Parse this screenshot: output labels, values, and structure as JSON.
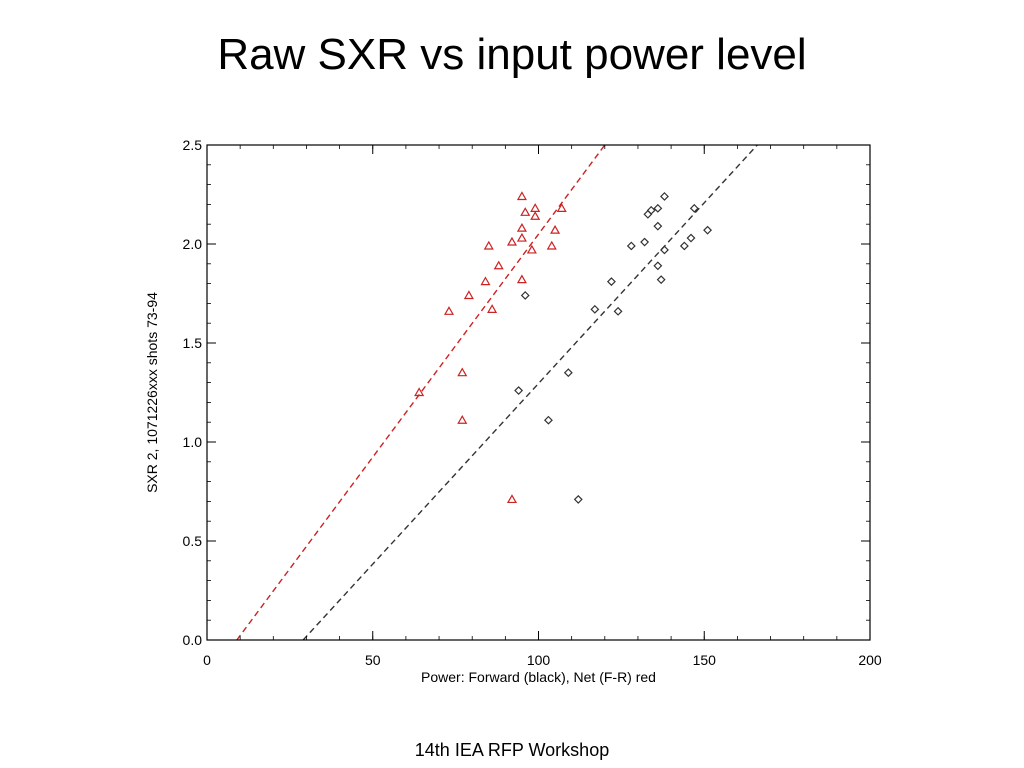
{
  "slide": {
    "title": "Raw SXR vs input power level",
    "footer": "14th IEA RFP Workshop"
  },
  "chart_data": {
    "type": "scatter",
    "title": "",
    "xlabel": "Power:  Forward (black), Net (F-R) red",
    "ylabel": "SXR 2, 1071226xxx shots 73-94",
    "xlim": [
      0,
      200
    ],
    "ylim": [
      0,
      2.5
    ],
    "xticks": [
      "0",
      "50",
      "100",
      "150",
      "200"
    ],
    "yticks": [
      "0.0",
      "0.5",
      "1.0",
      "1.5",
      "2.0",
      "2.5"
    ],
    "grid": false,
    "series": [
      {
        "marker": "diamond",
        "color": "#333333",
        "points": [
          [
            94,
            1.26
          ],
          [
            96,
            1.74
          ],
          [
            103,
            1.11
          ],
          [
            109,
            1.35
          ],
          [
            112,
            0.71
          ],
          [
            117,
            1.67
          ],
          [
            122,
            1.81
          ],
          [
            124,
            1.66
          ],
          [
            128,
            1.99
          ],
          [
            132,
            2.01
          ],
          [
            133,
            2.15
          ],
          [
            134,
            2.17
          ],
          [
            136,
            2.18
          ],
          [
            136,
            2.09
          ],
          [
            136,
            1.89
          ],
          [
            137,
            1.82
          ],
          [
            138,
            1.97
          ],
          [
            138,
            2.24
          ],
          [
            144,
            1.99
          ],
          [
            146,
            2.03
          ],
          [
            147,
            2.18
          ],
          [
            151,
            2.07
          ]
        ],
        "fit": [
          [
            29,
            0
          ],
          [
            166,
            2.5
          ]
        ]
      },
      {
        "marker": "triangle",
        "color": "#cc2222",
        "points": [
          [
            64,
            1.25
          ],
          [
            73,
            1.66
          ],
          [
            77,
            1.35
          ],
          [
            77,
            1.11
          ],
          [
            79,
            1.74
          ],
          [
            84,
            1.81
          ],
          [
            85,
            1.99
          ],
          [
            86,
            1.67
          ],
          [
            88,
            1.89
          ],
          [
            92,
            0.71
          ],
          [
            92,
            2.01
          ],
          [
            95,
            2.03
          ],
          [
            95,
            2.08
          ],
          [
            95,
            1.82
          ],
          [
            95,
            2.24
          ],
          [
            96,
            2.16
          ],
          [
            98,
            1.97
          ],
          [
            99,
            2.18
          ],
          [
            99,
            2.14
          ],
          [
            104,
            1.99
          ],
          [
            105,
            2.07
          ],
          [
            107,
            2.18
          ]
        ],
        "fit": [
          [
            9,
            0
          ],
          [
            120,
            2.5
          ]
        ]
      }
    ]
  }
}
